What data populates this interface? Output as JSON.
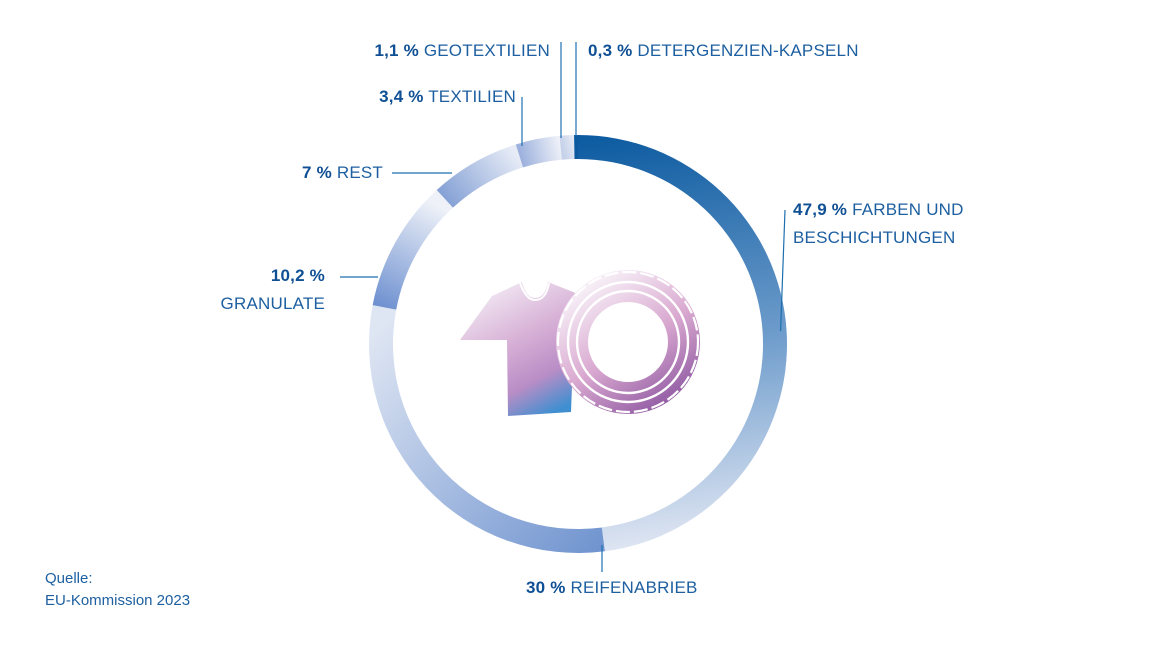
{
  "colors": {
    "text": "#1d5fa0",
    "bold_text": "#0f4f94",
    "leader": "#1d6fb0",
    "accent_dark": "#0b5aa0",
    "accent_mid": "#7fa3d6",
    "accent_light": "#dbe3f1",
    "icon_purple": "#9b5ea8",
    "icon_pink": "#d9a9d1",
    "icon_blue": "#3d8fd0"
  },
  "center_icons": [
    "t-shirt-icon",
    "tire-icon"
  ],
  "chart_data": {
    "type": "pie",
    "variant": "donut",
    "title": "",
    "start_angle_deg": 0,
    "direction": "clockwise",
    "slices": [
      {
        "id": "farben",
        "value": 47.9,
        "value_label": "47,9 %",
        "name_lines": [
          "FARBEN UND",
          "BESCHICHTUNGEN"
        ]
      },
      {
        "id": "reifen",
        "value": 30,
        "value_label": "30 %",
        "name_lines": [
          "REIFENABRIEB"
        ]
      },
      {
        "id": "granulate",
        "value": 10.2,
        "value_label": "10,2 %",
        "name_lines": [
          "GRANULATE"
        ]
      },
      {
        "id": "rest",
        "value": 7,
        "value_label": "7 %",
        "name_lines": [
          "REST"
        ]
      },
      {
        "id": "textilien",
        "value": 3.4,
        "value_label": "3,4 %",
        "name_lines": [
          "TEXTILIEN"
        ]
      },
      {
        "id": "geotextilien",
        "value": 1.1,
        "value_label": "1,1 %",
        "name_lines": [
          "GEOTEXTILIEN"
        ]
      },
      {
        "id": "kapseln",
        "value": 0.3,
        "value_label": "0,3 %",
        "name_lines": [
          "DETERGENZIEN-KAPSELN"
        ]
      }
    ]
  },
  "source": {
    "line1": "Quelle:",
    "line2": "EU-Kommission 2023"
  }
}
